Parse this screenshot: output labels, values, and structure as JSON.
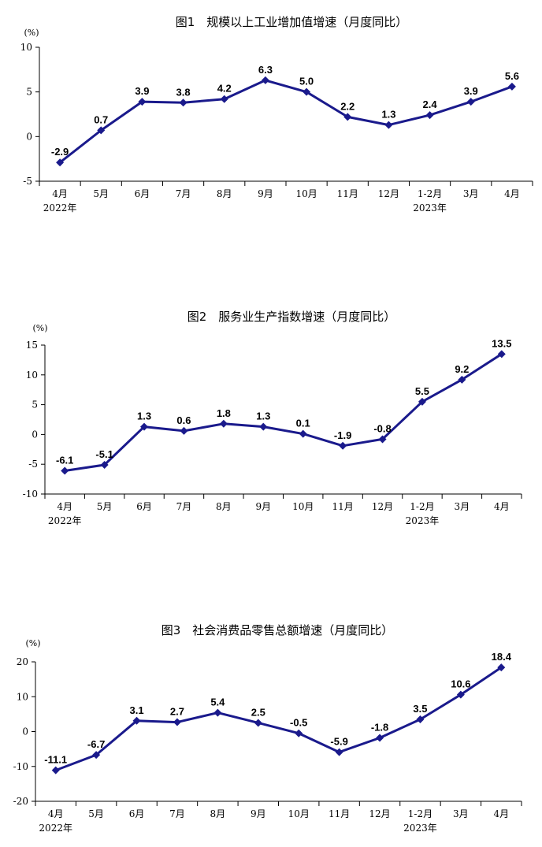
{
  "chart_data": [
    {
      "type": "line",
      "title": "图1　规模以上工业增加值增速（月度同比）",
      "unit": "(%)",
      "categories": [
        "4月",
        "5月",
        "6月",
        "7月",
        "8月",
        "9月",
        "10月",
        "11月",
        "12月",
        "1-2月",
        "3月",
        "4月"
      ],
      "year_labels": [
        {
          "index": 0,
          "text": "2022年"
        },
        {
          "index": 9,
          "text": "2023年"
        }
      ],
      "values": [
        -2.9,
        0.7,
        3.9,
        3.8,
        4.2,
        6.3,
        5.0,
        2.2,
        1.3,
        2.4,
        3.9,
        5.6
      ],
      "value_labels": [
        "-2.9",
        "0.7",
        "3.9",
        "3.8",
        "4.2",
        "6.3",
        "5.0",
        "2.2",
        "1.3",
        "2.4",
        "3.9",
        "5.6"
      ],
      "ylim": [
        -5,
        10
      ],
      "yticks": [
        -5,
        0,
        5,
        10
      ],
      "grid": false,
      "color": "#1a1a8c"
    },
    {
      "type": "line",
      "title": "图2　服务业生产指数增速（月度同比）",
      "unit": "(%)",
      "categories": [
        "4月",
        "5月",
        "6月",
        "7月",
        "8月",
        "9月",
        "10月",
        "11月",
        "12月",
        "1-2月",
        "3月",
        "4月"
      ],
      "year_labels": [
        {
          "index": 0,
          "text": "2022年"
        },
        {
          "index": 9,
          "text": "2023年"
        }
      ],
      "values": [
        -6.1,
        -5.1,
        1.3,
        0.6,
        1.8,
        1.3,
        0.1,
        -1.9,
        -0.8,
        5.5,
        9.2,
        13.5
      ],
      "value_labels": [
        "-6.1",
        "-5.1",
        "1.3",
        "0.6",
        "1.8",
        "1.3",
        "0.1",
        "-1.9",
        "-0.8",
        "5.5",
        "9.2",
        "13.5"
      ],
      "ylim": [
        -10,
        15
      ],
      "yticks": [
        -10,
        -5,
        0,
        5,
        10,
        15
      ],
      "grid": false,
      "color": "#1a1a8c"
    },
    {
      "type": "line",
      "title": "图3　社会消费品零售总额增速（月度同比）",
      "unit": "(%)",
      "categories": [
        "4月",
        "5月",
        "6月",
        "7月",
        "8月",
        "9月",
        "10月",
        "11月",
        "12月",
        "1-2月",
        "3月",
        "4月"
      ],
      "year_labels": [
        {
          "index": 0,
          "text": "2022年"
        },
        {
          "index": 9,
          "text": "2023年"
        }
      ],
      "values": [
        -11.1,
        -6.7,
        3.1,
        2.7,
        5.4,
        2.5,
        -0.5,
        -5.9,
        -1.8,
        3.5,
        10.6,
        18.4
      ],
      "value_labels": [
        "-11.1",
        "-6.7",
        "3.1",
        "2.7",
        "5.4",
        "2.5",
        "-0.5",
        "-5.9",
        "-1.8",
        "3.5",
        "10.6",
        "18.4"
      ],
      "ylim": [
        -20,
        20
      ],
      "yticks": [
        -20,
        -10,
        0,
        10,
        20
      ],
      "grid": false,
      "color": "#1a1a8c"
    }
  ]
}
